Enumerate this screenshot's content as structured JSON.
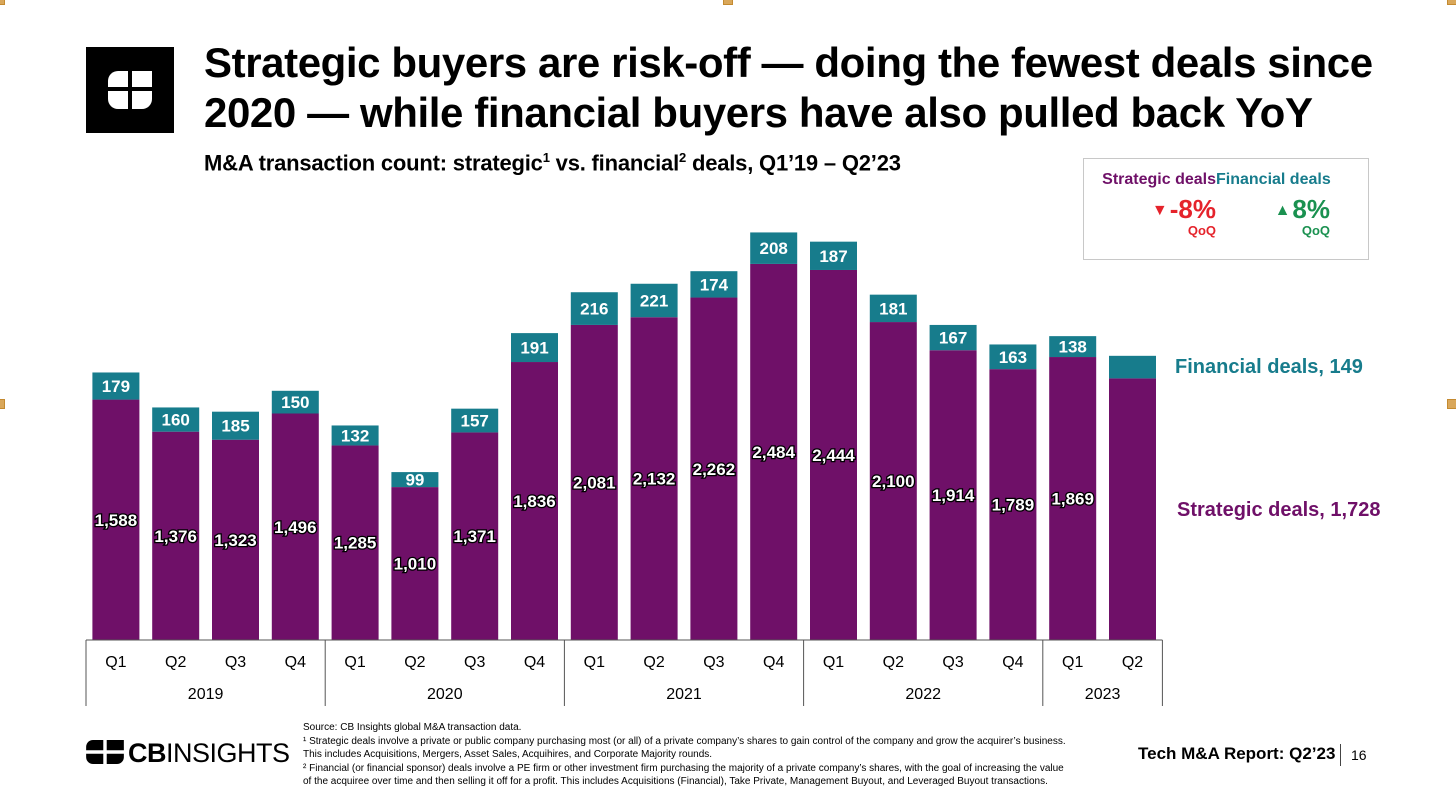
{
  "header": {
    "title": "Strategic buyers are risk-off — doing the fewest deals since 2020 — while financial buyers have also pulled back YoY",
    "subtitle_main": "M&A transaction count: strategic",
    "subtitle_sup1": "1",
    "subtitle_mid": " vs. financial",
    "subtitle_sup2": "2",
    "subtitle_end": " deals, Q1’19 – Q2’23"
  },
  "qoq": {
    "strategic_label": "Strategic deals",
    "strategic_value": "-8%",
    "strategic_unit": "QoQ",
    "financial_label": "Financial deals",
    "financial_value": "8%",
    "financial_unit": "QoQ"
  },
  "colors": {
    "strategic": "#6f1068",
    "financial": "#177c8c",
    "down": "#e5232b",
    "up": "#1a9150"
  },
  "chart_data": {
    "type": "bar",
    "stacked": true,
    "categories": [
      "Q1",
      "Q2",
      "Q3",
      "Q4",
      "Q1",
      "Q2",
      "Q3",
      "Q4",
      "Q1",
      "Q2",
      "Q3",
      "Q4",
      "Q1",
      "Q2",
      "Q3",
      "Q4",
      "Q1",
      "Q2"
    ],
    "year_groups": [
      {
        "year": "2019",
        "count": 4
      },
      {
        "year": "2020",
        "count": 4
      },
      {
        "year": "2021",
        "count": 4
      },
      {
        "year": "2022",
        "count": 4
      },
      {
        "year": "2023",
        "count": 2
      }
    ],
    "series": [
      {
        "name": "Strategic deals",
        "values": [
          1588,
          1376,
          1323,
          1496,
          1285,
          1010,
          1371,
          1836,
          2081,
          2132,
          2262,
          2484,
          2444,
          2100,
          1914,
          1789,
          1869,
          1728
        ]
      },
      {
        "name": "Financial deals",
        "values": [
          179,
          160,
          185,
          150,
          132,
          99,
          157,
          191,
          216,
          221,
          174,
          208,
          187,
          181,
          167,
          163,
          138,
          149
        ]
      }
    ],
    "data_labels_strategic": [
      "1,588",
      "1,376",
      "1,323",
      "1,496",
      "1,285",
      "1,010",
      "1,371",
      "1,836",
      "2,081",
      "2,132",
      "2,262",
      "2,484",
      "2,444",
      "2,100",
      "1,914",
      "1,789",
      "1,869",
      ""
    ],
    "data_labels_financial": [
      "179",
      "160",
      "185",
      "150",
      "132",
      "99",
      "157",
      "191",
      "216",
      "221",
      "174",
      "208",
      "187",
      "181",
      "167",
      "163",
      "138",
      ""
    ],
    "end_labels": {
      "financial": "Financial deals, 149",
      "strategic": "Strategic deals, 1,728"
    },
    "grid": false
  },
  "footer": {
    "logo_bold": "CB",
    "logo_light": "INSIGHTS",
    "source": "Source: CB Insights global M&A transaction data.",
    "note1": "¹ Strategic deals involve a private or public company purchasing most (or all) of a private company’s shares to gain control of the company and grow the acquirer’s business. This includes Acquisitions, Mergers, Asset Sales, Acquihires, and Corporate Majority rounds.",
    "note2": "² Financial (or financial sponsor) deals involve a PE firm or other investment firm purchasing the majority of a private company’s shares, with the goal of increasing the value of the acquiree over time and then selling it off for a profit. This includes Acquisitions (Financial), Take Private, Management Buyout, and Leveraged Buyout transactions.",
    "report": "Tech M&A Report: Q2’23",
    "page": "16"
  }
}
